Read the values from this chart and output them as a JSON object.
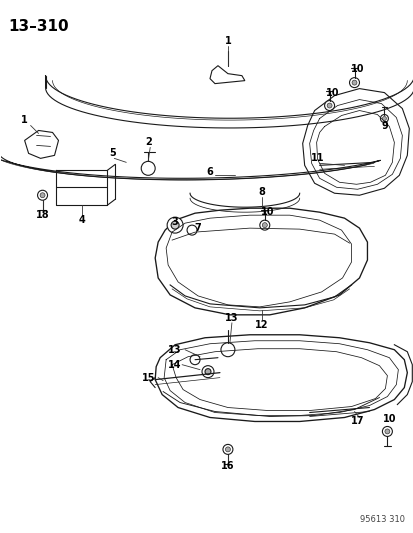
{
  "title": "13–310",
  "footer": "95613 310",
  "bg_color": "#ffffff",
  "line_color": "#1a1a1a",
  "text_color": "#000000",
  "title_fontsize": 11,
  "label_fontsize": 7,
  "fig_width": 4.14,
  "fig_height": 5.33,
  "dpi": 100
}
